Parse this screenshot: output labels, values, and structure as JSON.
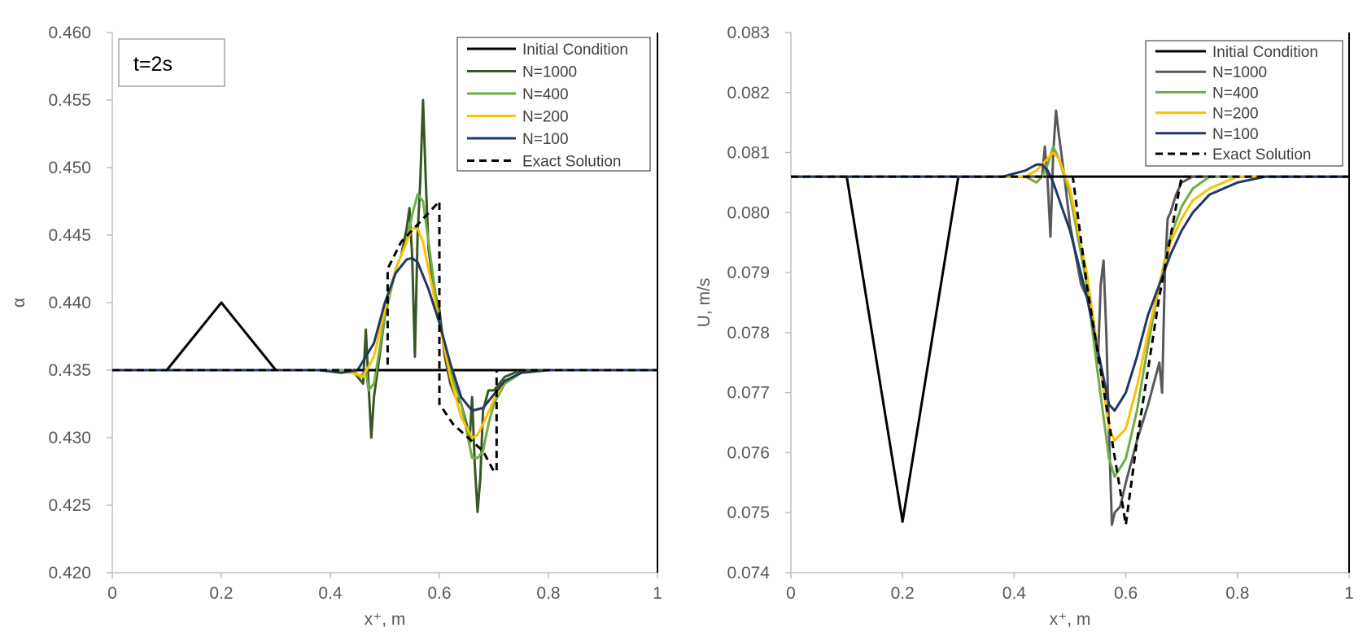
{
  "chart_data": [
    {
      "type": "line",
      "xlabel": "x⁺, m",
      "ylabel": "α",
      "xlim": [
        0,
        1
      ],
      "ylim": [
        0.42,
        0.46
      ],
      "xticks": [
        "0",
        "0.2",
        "0.4",
        "0.6",
        "0.8",
        "1"
      ],
      "yticks": [
        "0.420",
        "0.425",
        "0.430",
        "0.435",
        "0.440",
        "0.445",
        "0.450",
        "0.455",
        "0.460"
      ],
      "annotation": "t=2s",
      "legend_position": "top-right",
      "grid": false,
      "series": [
        {
          "name": "Initial Condition",
          "color": "#000000",
          "dash": "solid",
          "x": [
            0,
            0.1,
            0.2,
            0.3,
            1
          ],
          "y": [
            0.435,
            0.435,
            0.44,
            0.435,
            0.435
          ]
        },
        {
          "name": "N=1000",
          "color": "#375623",
          "dash": "solid",
          "x": [
            0,
            0.38,
            0.44,
            0.45,
            0.46,
            0.465,
            0.47,
            0.475,
            0.48,
            0.5,
            0.52,
            0.53,
            0.54,
            0.545,
            0.55,
            0.555,
            0.56,
            0.565,
            0.57,
            0.575,
            0.58,
            0.59,
            0.6,
            0.61,
            0.62,
            0.63,
            0.64,
            0.65,
            0.655,
            0.66,
            0.665,
            0.67,
            0.675,
            0.68,
            0.69,
            0.7,
            0.72,
            0.75,
            1
          ],
          "y": [
            0.435,
            0.435,
            0.435,
            0.4345,
            0.434,
            0.438,
            0.434,
            0.43,
            0.433,
            0.439,
            0.4425,
            0.4435,
            0.4455,
            0.447,
            0.4435,
            0.436,
            0.445,
            0.449,
            0.455,
            0.449,
            0.444,
            0.441,
            0.4395,
            0.436,
            0.434,
            0.433,
            0.4325,
            0.431,
            0.4295,
            0.433,
            0.428,
            0.4245,
            0.427,
            0.432,
            0.4335,
            0.4335,
            0.4345,
            0.435,
            0.435
          ]
        },
        {
          "name": "N=400",
          "color": "#70AD47",
          "dash": "solid",
          "x": [
            0,
            0.38,
            0.44,
            0.455,
            0.465,
            0.47,
            0.48,
            0.5,
            0.52,
            0.54,
            0.55,
            0.56,
            0.57,
            0.58,
            0.59,
            0.6,
            0.62,
            0.64,
            0.65,
            0.66,
            0.67,
            0.68,
            0.69,
            0.7,
            0.72,
            0.75,
            0.8,
            1
          ],
          "y": [
            0.435,
            0.435,
            0.435,
            0.4345,
            0.435,
            0.4335,
            0.434,
            0.439,
            0.4425,
            0.4445,
            0.4465,
            0.448,
            0.4475,
            0.4445,
            0.4415,
            0.4385,
            0.435,
            0.4325,
            0.4305,
            0.4285,
            0.4285,
            0.429,
            0.431,
            0.4325,
            0.434,
            0.4348,
            0.435,
            0.435
          ]
        },
        {
          "name": "N=200",
          "color": "#FFC000",
          "dash": "solid",
          "x": [
            0,
            0.38,
            0.44,
            0.46,
            0.48,
            0.5,
            0.52,
            0.54,
            0.55,
            0.56,
            0.57,
            0.58,
            0.6,
            0.62,
            0.64,
            0.66,
            0.67,
            0.68,
            0.7,
            0.72,
            0.75,
            0.8,
            1
          ],
          "y": [
            0.435,
            0.435,
            0.4348,
            0.4345,
            0.436,
            0.4395,
            0.4425,
            0.4445,
            0.4455,
            0.4455,
            0.4445,
            0.4425,
            0.4385,
            0.4345,
            0.4315,
            0.43,
            0.4302,
            0.431,
            0.4328,
            0.4342,
            0.4348,
            0.435,
            0.435
          ]
        },
        {
          "name": "N=100",
          "color": "#203864",
          "dash": "solid",
          "x": [
            0,
            0.38,
            0.42,
            0.45,
            0.48,
            0.5,
            0.52,
            0.54,
            0.55,
            0.56,
            0.58,
            0.6,
            0.62,
            0.64,
            0.66,
            0.68,
            0.7,
            0.72,
            0.75,
            0.8,
            1
          ],
          "y": [
            0.435,
            0.435,
            0.4348,
            0.435,
            0.437,
            0.44,
            0.4422,
            0.4432,
            0.4433,
            0.443,
            0.441,
            0.4385,
            0.4355,
            0.433,
            0.432,
            0.4322,
            0.4332,
            0.4342,
            0.4348,
            0.435,
            0.435
          ]
        },
        {
          "name": "Exact Solution",
          "color": "#000000",
          "dash": "dashed",
          "x": [
            0,
            0.505,
            0.505,
            0.53,
            0.6,
            0.6,
            0.6,
            0.625,
            0.68,
            0.7,
            0.705,
            0.705,
            1
          ],
          "y": [
            0.435,
            0.435,
            0.4425,
            0.4445,
            0.4475,
            0.4475,
            0.4325,
            0.431,
            0.429,
            0.4275,
            0.4275,
            0.435,
            0.435
          ]
        }
      ]
    },
    {
      "type": "line",
      "xlabel": "x⁺, m",
      "ylabel": "U, m/s",
      "xlim": [
        0,
        1
      ],
      "ylim": [
        0.074,
        0.083
      ],
      "xticks": [
        "0",
        "0.2",
        "0.4",
        "0.6",
        "0.8",
        "1"
      ],
      "yticks": [
        "0.074",
        "0.075",
        "0.076",
        "0.077",
        "0.078",
        "0.079",
        "0.080",
        "0.081",
        "0.082",
        "0.083"
      ],
      "legend_position": "top-right",
      "grid": false,
      "series": [
        {
          "name": "Initial Condition",
          "color": "#000000",
          "dash": "solid",
          "x": [
            0,
            0.1,
            0.2,
            0.3,
            1
          ],
          "y": [
            0.0806,
            0.0806,
            0.07485,
            0.0806,
            0.0806
          ]
        },
        {
          "name": "N=1000",
          "color": "#595959",
          "dash": "solid",
          "x": [
            0,
            0.42,
            0.45,
            0.455,
            0.46,
            0.465,
            0.47,
            0.475,
            0.48,
            0.49,
            0.5,
            0.52,
            0.535,
            0.55,
            0.555,
            0.56,
            0.565,
            0.57,
            0.575,
            0.58,
            0.59,
            0.6,
            0.62,
            0.64,
            0.66,
            0.665,
            0.67,
            0.675,
            0.68,
            0.69,
            0.7,
            0.72,
            0.75,
            1
          ],
          "y": [
            0.0806,
            0.0806,
            0.0806,
            0.0811,
            0.0805,
            0.0796,
            0.081,
            0.0817,
            0.0813,
            0.0806,
            0.0798,
            0.0788,
            0.0785,
            0.0775,
            0.0788,
            0.0792,
            0.078,
            0.0763,
            0.0748,
            0.075,
            0.0751,
            0.0755,
            0.0762,
            0.0768,
            0.0775,
            0.077,
            0.079,
            0.0799,
            0.08,
            0.0803,
            0.0805,
            0.0806,
            0.0806,
            0.0806
          ]
        },
        {
          "name": "N=400",
          "color": "#70AD47",
          "dash": "solid",
          "x": [
            0,
            0.42,
            0.44,
            0.45,
            0.46,
            0.47,
            0.48,
            0.5,
            0.53,
            0.55,
            0.57,
            0.58,
            0.6,
            0.62,
            0.64,
            0.66,
            0.68,
            0.7,
            0.72,
            0.75,
            0.8,
            1
          ],
          "y": [
            0.0806,
            0.0806,
            0.0805,
            0.0806,
            0.0808,
            0.0811,
            0.0809,
            0.0803,
            0.0788,
            0.0773,
            0.0759,
            0.0756,
            0.0759,
            0.0767,
            0.0778,
            0.0788,
            0.0796,
            0.0801,
            0.0804,
            0.0806,
            0.0806,
            0.0806
          ]
        },
        {
          "name": "N=200",
          "color": "#FFC000",
          "dash": "solid",
          "x": [
            0,
            0.42,
            0.44,
            0.46,
            0.47,
            0.48,
            0.5,
            0.53,
            0.55,
            0.57,
            0.58,
            0.6,
            0.62,
            0.64,
            0.66,
            0.68,
            0.7,
            0.72,
            0.75,
            0.8,
            1
          ],
          "y": [
            0.0806,
            0.0806,
            0.0807,
            0.0809,
            0.081,
            0.0809,
            0.0804,
            0.079,
            0.0777,
            0.0764,
            0.0762,
            0.0764,
            0.0771,
            0.078,
            0.0788,
            0.0795,
            0.0799,
            0.0802,
            0.0804,
            0.0806,
            0.0806
          ]
        },
        {
          "name": "N=100",
          "color": "#203864",
          "dash": "solid",
          "x": [
            0,
            0.38,
            0.42,
            0.44,
            0.45,
            0.46,
            0.47,
            0.5,
            0.53,
            0.55,
            0.57,
            0.58,
            0.6,
            0.62,
            0.64,
            0.66,
            0.68,
            0.7,
            0.72,
            0.75,
            0.8,
            0.85,
            1
          ],
          "y": [
            0.0806,
            0.0806,
            0.0807,
            0.0808,
            0.0808,
            0.0807,
            0.0805,
            0.0797,
            0.0786,
            0.0777,
            0.0768,
            0.0767,
            0.077,
            0.0776,
            0.0783,
            0.0788,
            0.0793,
            0.0797,
            0.08,
            0.0803,
            0.0805,
            0.0806,
            0.0806
          ]
        },
        {
          "name": "Exact Solution",
          "color": "#000000",
          "dash": "dashed",
          "x": [
            0,
            0.505,
            0.505,
            0.53,
            0.57,
            0.6,
            0.6,
            0.6,
            0.62,
            0.66,
            0.7,
            0.705,
            0.705,
            1
          ],
          "y": [
            0.0806,
            0.0806,
            0.0806,
            0.0788,
            0.0765,
            0.0748,
            0.0748,
            0.0748,
            0.0762,
            0.0786,
            0.0806,
            0.0806,
            0.0806,
            0.0806
          ]
        }
      ]
    }
  ]
}
